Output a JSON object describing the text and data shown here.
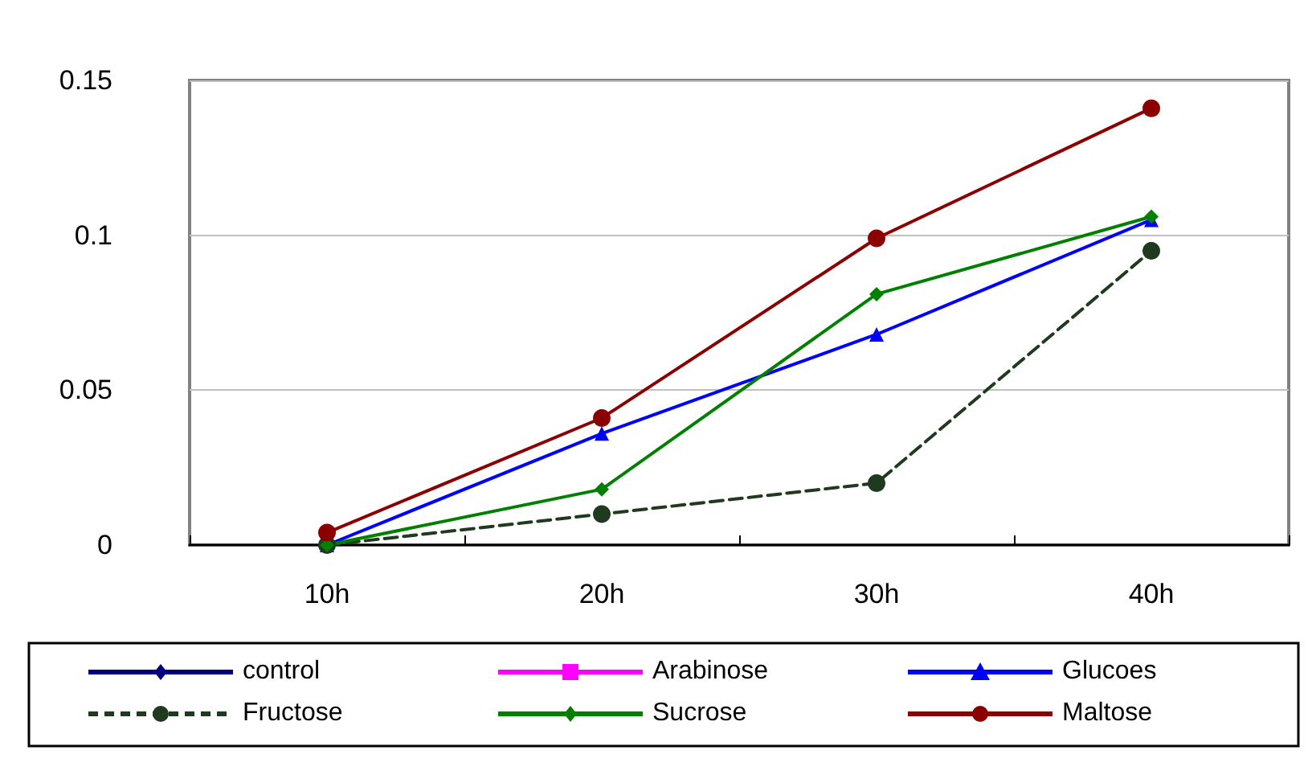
{
  "chart_data": {
    "type": "line",
    "categories": [
      "10h",
      "20h",
      "30h",
      "40h"
    ],
    "ylim": [
      0,
      0.15
    ],
    "yticks": [
      0,
      0.05,
      0.1,
      0.15
    ],
    "grid": "y",
    "legend": "bottom",
    "series": [
      {
        "name": "control",
        "color": "#000080",
        "marker": "diamond",
        "line_style": "solid",
        "values": [
          null,
          null,
          null,
          null
        ]
      },
      {
        "name": "Arabinose",
        "color": "#ff00ff",
        "marker": "square",
        "line_style": "solid",
        "values": [
          null,
          null,
          null,
          null
        ]
      },
      {
        "name": "Glucoes",
        "color": "#0000ff",
        "marker": "triangle",
        "line_style": "solid",
        "values": [
          0,
          0.036,
          0.068,
          0.105
        ]
      },
      {
        "name": "Fructose",
        "color": "#1f3a1f",
        "marker": "circle",
        "line_style": "dashed",
        "values": [
          0,
          0.01,
          0.02,
          0.095
        ]
      },
      {
        "name": "Sucrose",
        "color": "#008000",
        "marker": "diamond",
        "line_style": "solid",
        "values": [
          0,
          0.018,
          0.081,
          0.106
        ]
      },
      {
        "name": "Maltose",
        "color": "#8b0000",
        "marker": "circle",
        "line_style": "solid",
        "values": [
          0.004,
          0.041,
          0.099,
          0.141
        ]
      }
    ]
  }
}
